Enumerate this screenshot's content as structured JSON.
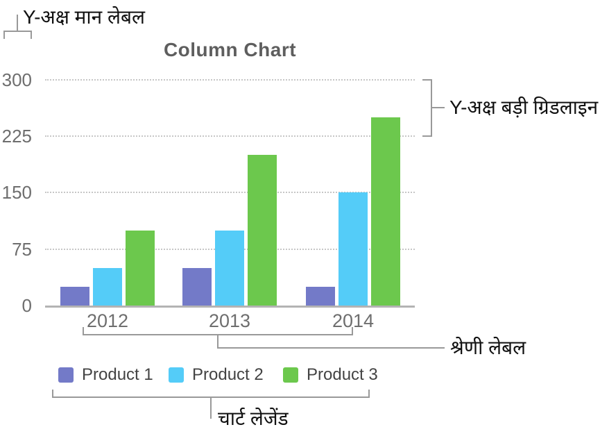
{
  "annotations": {
    "y_axis_value_label": "Y-अक्ष मान लेबल",
    "y_axis_major_gridline": "Y-अक्ष बड़ी ग्रिडलाइन",
    "category_label": "श्रेणी लेबल",
    "chart_legend": "चार्ट लेजेंड"
  },
  "chart_data": {
    "type": "bar",
    "title": "Column Chart",
    "categories": [
      "2012",
      "2013",
      "2014"
    ],
    "series": [
      {
        "name": "Product 1",
        "color": "#737ac8",
        "values": [
          25,
          50,
          25
        ]
      },
      {
        "name": "Product 2",
        "color": "#54ccf8",
        "values": [
          50,
          100,
          150
        ]
      },
      {
        "name": "Product 3",
        "color": "#6cc84d",
        "values": [
          100,
          200,
          250
        ]
      }
    ],
    "y_ticks": [
      0,
      75,
      150,
      225,
      300
    ],
    "ylim": [
      0,
      300
    ],
    "xlabel": "",
    "ylabel": "",
    "grid": "horizontal dotted major gridlines",
    "legend_position": "bottom"
  },
  "colors": {
    "gridline": "#c6c6c6",
    "axis_line": "#b3b3b3",
    "bracket": "#999999",
    "tick_label": "#6e6e6e",
    "title": "#5e5e5e",
    "legend_text": "#434343",
    "annotation_text": "#111111"
  }
}
